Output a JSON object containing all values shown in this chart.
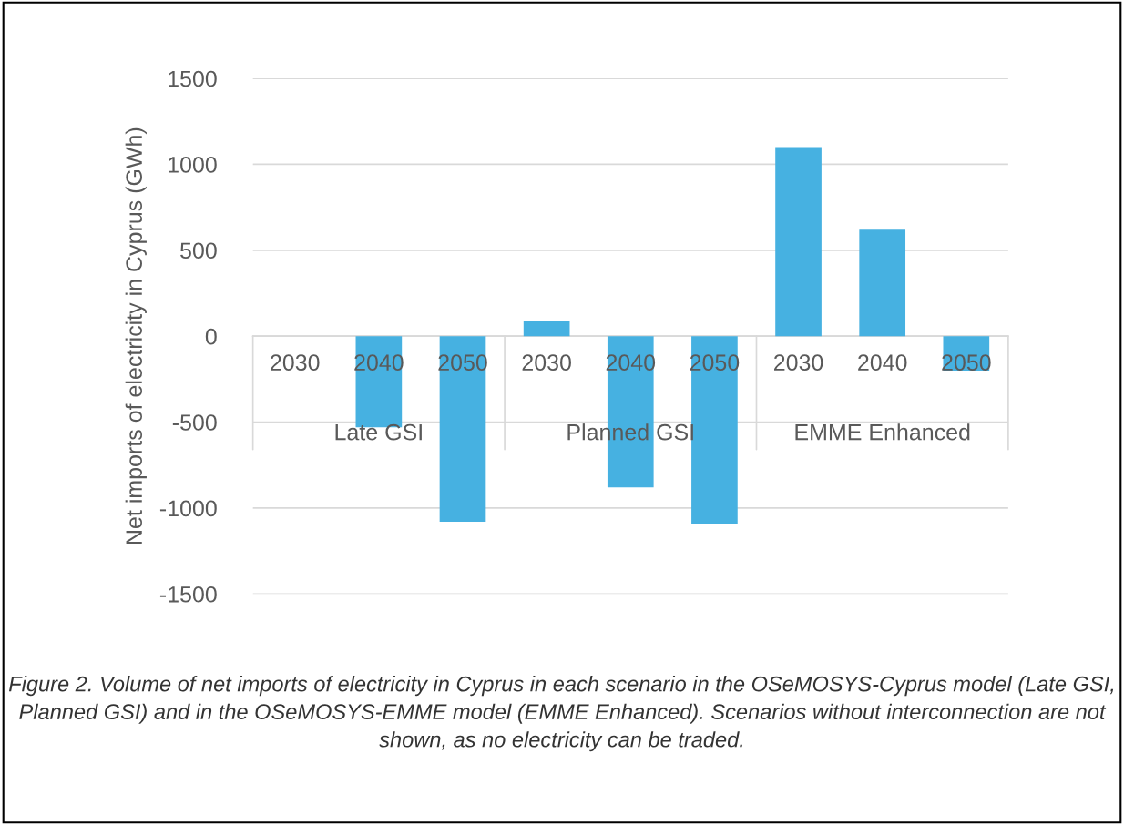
{
  "chart_data": {
    "type": "bar",
    "ylabel": "Net imports of electricity in Cyprus (GWh)",
    "categories": [
      "2030",
      "2040",
      "2050",
      "2030",
      "2040",
      "2050",
      "2030",
      "2040",
      "2050"
    ],
    "values": [
      0,
      -530,
      -1080,
      90,
      -880,
      -1090,
      1100,
      620,
      -200
    ],
    "color": "#46b1e1",
    "ylim": [
      -1500,
      1500
    ],
    "yticks": [
      -1500,
      -1000,
      -500,
      0,
      500,
      1000,
      1500
    ],
    "grid": "y",
    "annotations": [
      "Late GSI",
      "Planned GSI",
      "EMME Enhanced",
      "Figure 2. Volume of net imports of electricity in Cyprus in each scenario in the OSeMOSYS-Cyprus model (Late GSI, Planned GSI) and in the OSeMOSYS-EMME model (EMME Enhanced). Scenarios without interconnection are not shown, as no electricity can be traded."
    ]
  }
}
